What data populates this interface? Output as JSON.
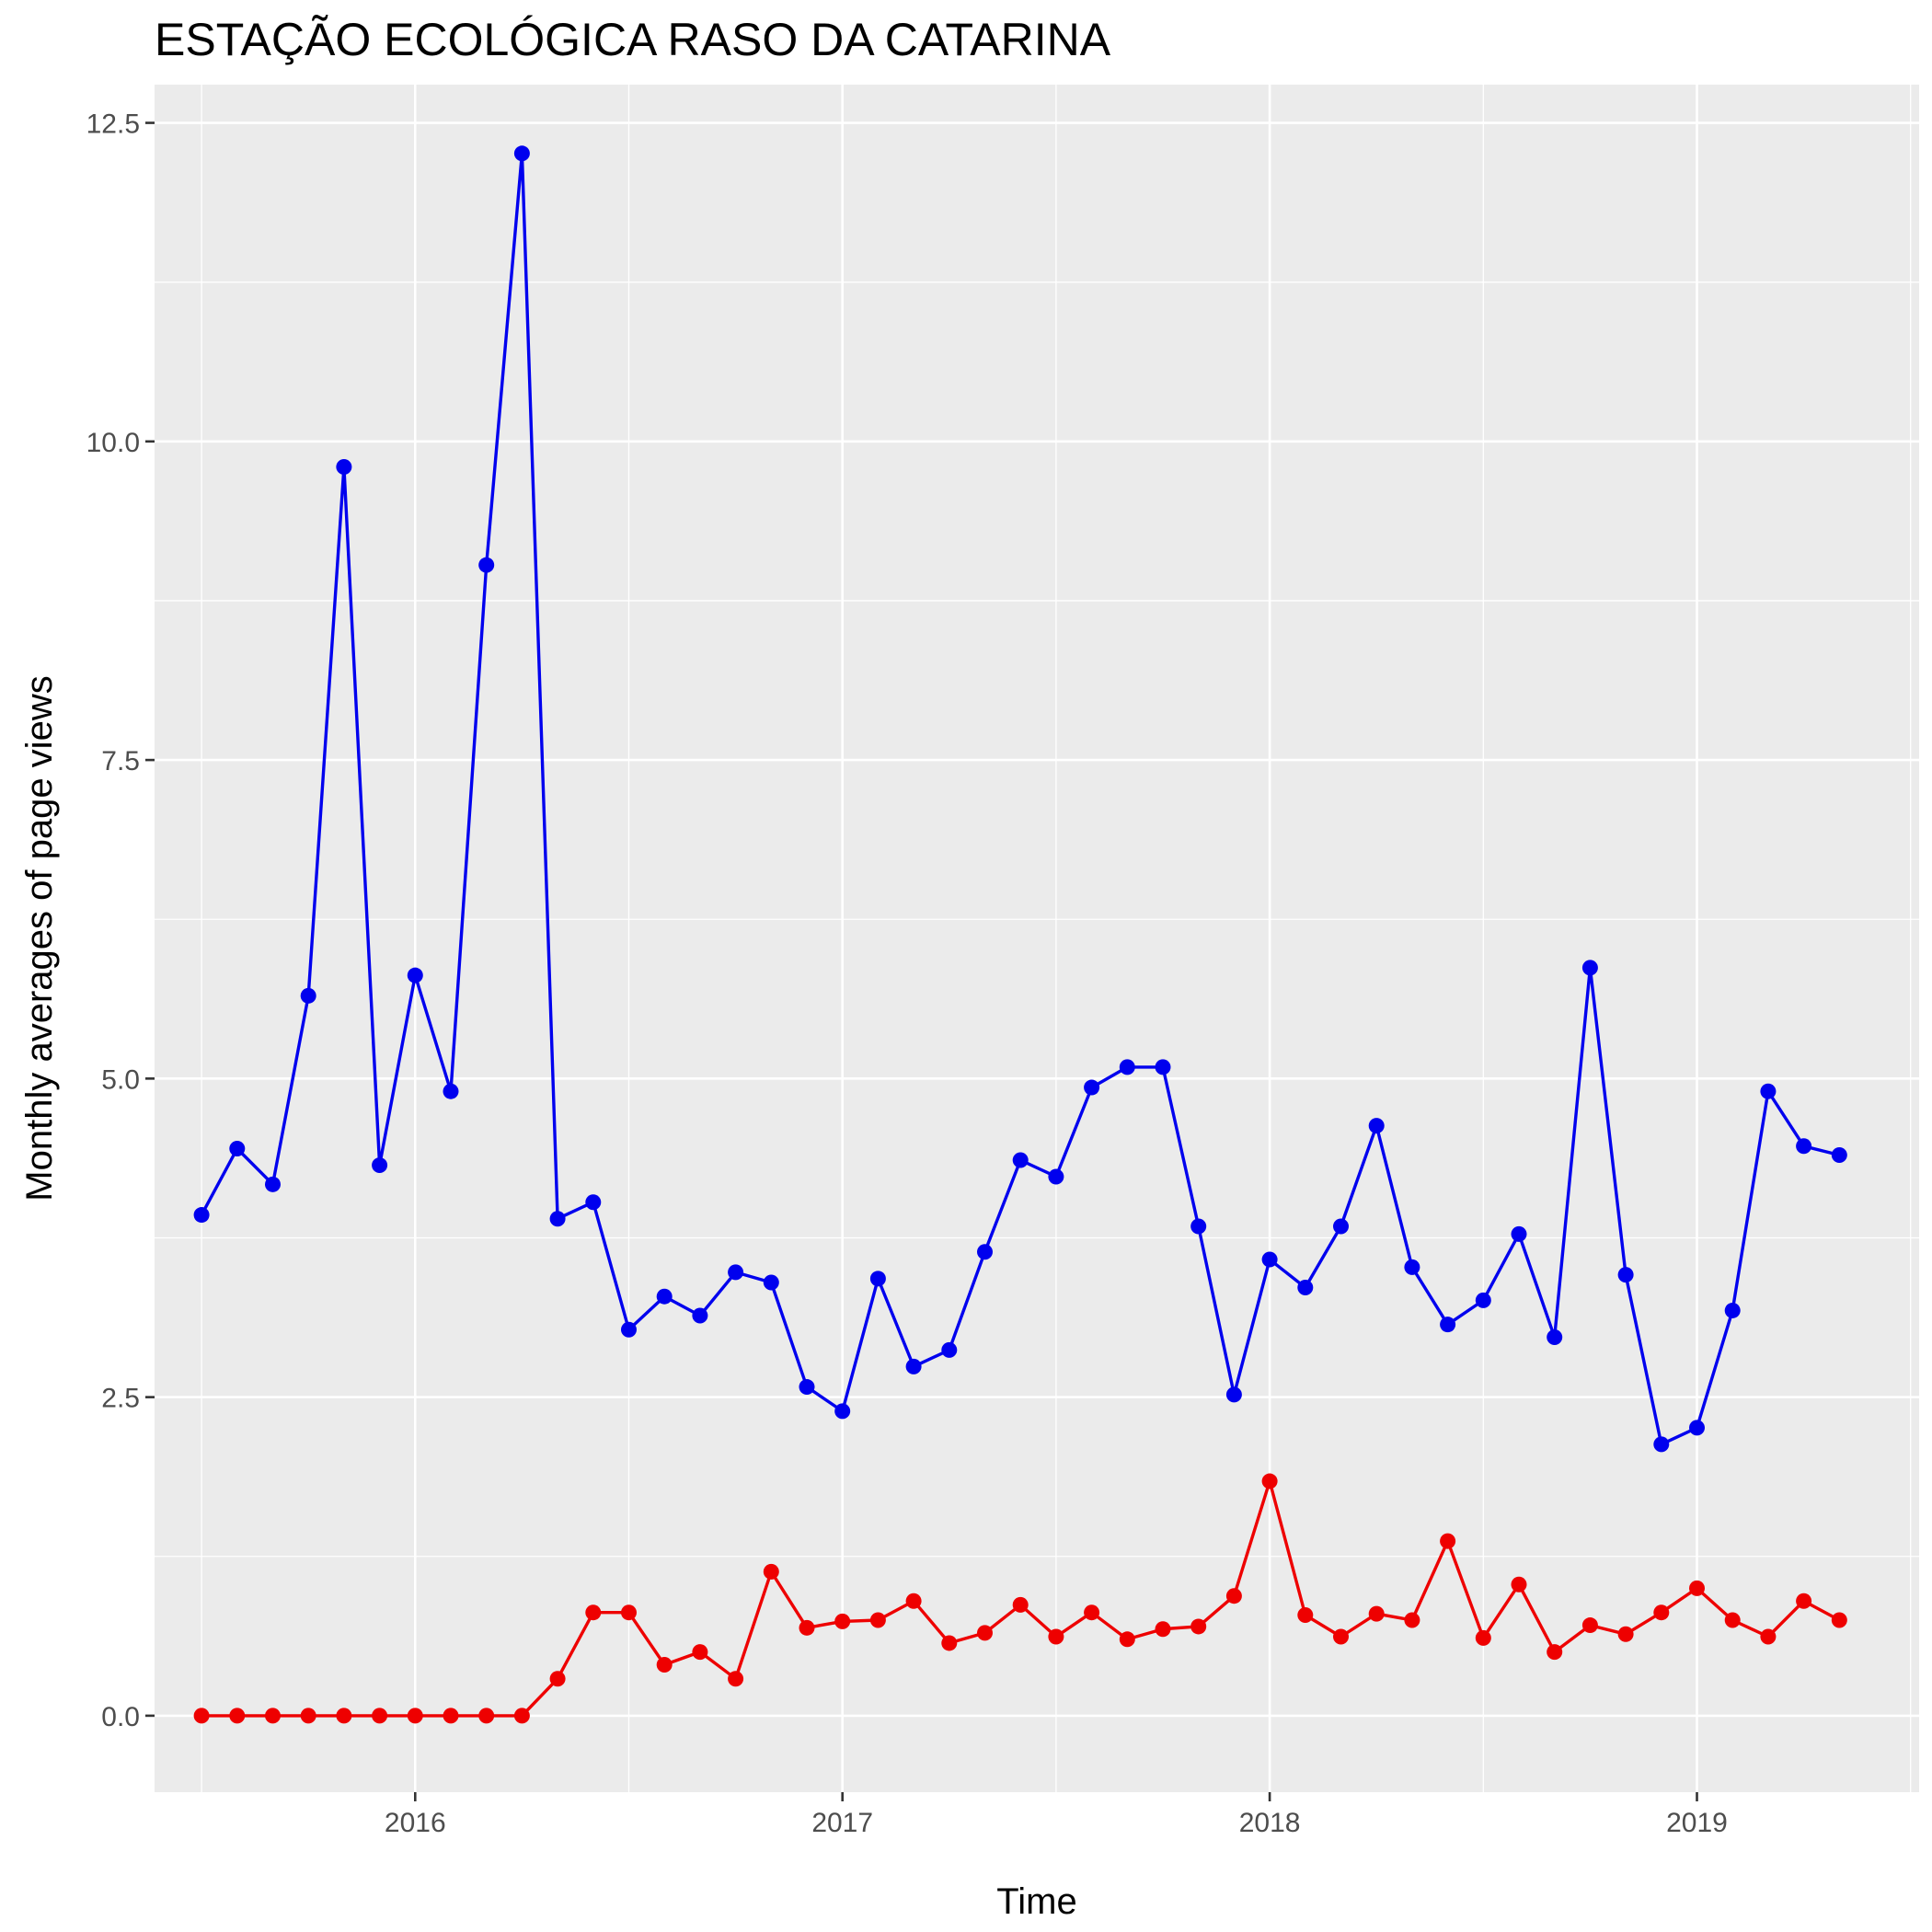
{
  "chart_data": {
    "type": "line",
    "title": "ESTAÇÃO ECOLÓGICA RASO DA CATARINA",
    "xlabel": "Time",
    "ylabel": "Monthly averages of page views",
    "xlim": [
      2015.39,
      2019.52
    ],
    "ylim": [
      -0.6,
      12.8
    ],
    "x_ticks": [
      2016,
      2017,
      2018,
      2019
    ],
    "x_tick_labels": [
      "2016",
      "2017",
      "2018",
      "2019"
    ],
    "y_ticks": [
      0,
      2.5,
      5,
      7.5,
      10,
      12.5
    ],
    "y_tick_labels": [
      "0.0",
      "2.5",
      "5.0",
      "7.5",
      "10.0",
      "12.5"
    ],
    "grid": true,
    "legend": "none",
    "x": [
      "2015-07",
      "2015-08",
      "2015-09",
      "2015-10",
      "2015-11",
      "2015-12",
      "2016-01",
      "2016-02",
      "2016-03",
      "2016-04",
      "2016-05",
      "2016-06",
      "2016-07",
      "2016-08",
      "2016-09",
      "2016-10",
      "2016-11",
      "2016-12",
      "2017-01",
      "2017-02",
      "2017-03",
      "2017-04",
      "2017-05",
      "2017-06",
      "2017-07",
      "2017-08",
      "2017-09",
      "2017-10",
      "2017-11",
      "2017-12",
      "2018-01",
      "2018-02",
      "2018-03",
      "2018-04",
      "2018-05",
      "2018-06",
      "2018-07",
      "2018-08",
      "2018-09",
      "2018-10",
      "2018-11",
      "2018-12",
      "2019-01",
      "2019-02",
      "2019-03",
      "2019-04",
      "2019-05"
    ],
    "series": [
      {
        "color": "#0000ee",
        "values": [
          3.93,
          4.45,
          4.17,
          5.65,
          9.8,
          4.32,
          5.81,
          4.9,
          9.03,
          12.26,
          3.9,
          4.03,
          3.03,
          3.29,
          3.14,
          3.48,
          3.4,
          2.58,
          2.39,
          3.43,
          2.74,
          2.87,
          3.64,
          4.36,
          4.23,
          4.93,
          5.09,
          5.09,
          3.84,
          2.52,
          3.58,
          3.36,
          3.84,
          4.63,
          3.52,
          3.07,
          3.26,
          3.78,
          2.97,
          5.87,
          3.46,
          2.13,
          2.26,
          3.18,
          4.9,
          4.47,
          4.4
        ]
      },
      {
        "color": "#ee0000",
        "values": [
          0,
          0,
          0,
          0,
          0,
          0,
          0,
          0,
          0,
          0,
          0.29,
          0.81,
          0.81,
          0.4,
          0.5,
          0.29,
          1.13,
          0.69,
          0.74,
          0.75,
          0.9,
          0.57,
          0.65,
          0.87,
          0.62,
          0.81,
          0.6,
          0.68,
          0.7,
          0.94,
          1.84,
          0.79,
          0.62,
          0.8,
          0.75,
          1.37,
          0.61,
          1.03,
          0.5,
          0.71,
          0.64,
          0.81,
          1.0,
          0.75,
          0.62,
          0.9,
          0.75
        ]
      }
    ]
  }
}
